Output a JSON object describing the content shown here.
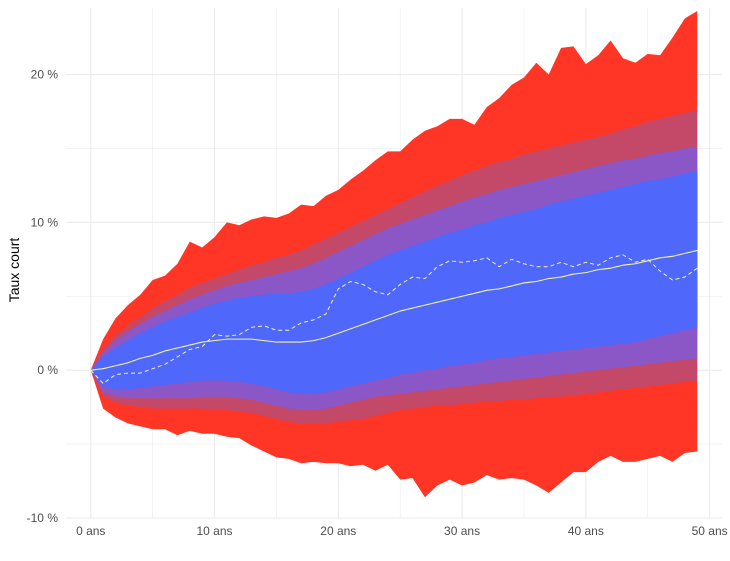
{
  "chart_data": {
    "type": "area",
    "title": "",
    "xlabel": "",
    "ylabel": "Taux court",
    "x_unit_suffix": " ans",
    "y_unit_suffix": " %",
    "xlim": [
      -2,
      51
    ],
    "ylim": [
      -10,
      24.5
    ],
    "x_ticks": [
      0,
      10,
      20,
      30,
      40,
      50
    ],
    "x_tick_labels": [
      "0 ans",
      "10 ans",
      "20 ans",
      "30 ans",
      "40 ans",
      "50 ans"
    ],
    "y_ticks": [
      -10,
      0,
      10,
      20
    ],
    "y_tick_labels": [
      "-10 %",
      "0 %",
      "10 %",
      "20 %"
    ],
    "grid": true,
    "legend": "none",
    "colors": {
      "outer_band": "#FF3526",
      "middle_band": "#C44868",
      "inner_band": "#8B56C5",
      "core_band": "#4F67FB",
      "mean_line": "#F5F59E",
      "path_line": "#F5F59E",
      "grid": "#EBEBEB"
    },
    "x": [
      0,
      1,
      2,
      3,
      4,
      5,
      6,
      7,
      8,
      9,
      10,
      11,
      12,
      13,
      14,
      15,
      16,
      17,
      18,
      19,
      20,
      21,
      22,
      23,
      24,
      25,
      26,
      27,
      28,
      29,
      30,
      31,
      32,
      33,
      34,
      35,
      36,
      37,
      38,
      39,
      40,
      41,
      42,
      43,
      44,
      45,
      46,
      47,
      48,
      49
    ],
    "bands": [
      {
        "level": "outer",
        "upper": [
          0,
          2.1,
          3.5,
          4.4,
          5.1,
          6.1,
          6.4,
          7.2,
          8.7,
          8.3,
          9.0,
          10.0,
          9.8,
          10.2,
          10.4,
          10.3,
          10.6,
          11.2,
          11.1,
          11.8,
          12.2,
          12.9,
          13.5,
          14.2,
          14.8,
          14.8,
          15.6,
          16.2,
          16.5,
          17.0,
          17.0,
          16.6,
          17.8,
          18.4,
          19.3,
          19.8,
          20.8,
          20.0,
          21.8,
          21.9,
          20.7,
          21.3,
          22.3,
          21.1,
          20.8,
          21.4,
          21.3,
          22.5,
          23.8,
          24.3
        ],
        "lower": [
          0,
          -2.6,
          -3.2,
          -3.6,
          -3.8,
          -4.0,
          -4.0,
          -4.4,
          -4.1,
          -4.3,
          -4.3,
          -4.5,
          -4.6,
          -5.1,
          -5.5,
          -5.9,
          -6.0,
          -6.3,
          -6.2,
          -6.3,
          -6.3,
          -6.5,
          -6.4,
          -6.8,
          -6.4,
          -7.4,
          -7.3,
          -8.6,
          -7.8,
          -7.4,
          -7.8,
          -7.6,
          -7.1,
          -7.4,
          -7.3,
          -7.4,
          -7.8,
          -8.3,
          -7.6,
          -6.9,
          -6.9,
          -6.2,
          -5.8,
          -6.2,
          -6.2,
          -6.0,
          -5.8,
          -6.2,
          -5.6,
          -5.5
        ]
      },
      {
        "level": "middle",
        "upper": [
          0,
          1.4,
          2.4,
          3.0,
          3.6,
          4.2,
          4.7,
          5.1,
          5.6,
          5.9,
          6.2,
          6.5,
          6.8,
          7.1,
          7.3,
          7.6,
          7.8,
          8.1,
          8.5,
          8.9,
          9.3,
          9.7,
          10.1,
          10.5,
          10.9,
          11.3,
          11.7,
          12.1,
          12.5,
          12.8,
          13.2,
          13.5,
          13.8,
          14.1,
          14.3,
          14.6,
          14.8,
          15.0,
          15.2,
          15.4,
          15.6,
          15.8,
          16.0,
          16.3,
          16.5,
          16.8,
          17.0,
          17.2,
          17.4,
          17.6
        ],
        "lower": [
          0,
          -1.8,
          -2.2,
          -2.4,
          -2.5,
          -2.6,
          -2.6,
          -2.6,
          -2.6,
          -2.6,
          -2.7,
          -2.7,
          -2.8,
          -2.9,
          -3.1,
          -3.3,
          -3.5,
          -3.6,
          -3.6,
          -3.6,
          -3.5,
          -3.4,
          -3.3,
          -3.1,
          -2.9,
          -2.7,
          -2.6,
          -2.5,
          -2.4,
          -2.4,
          -2.3,
          -2.2,
          -2.1,
          -2.1,
          -2.0,
          -2.0,
          -1.9,
          -1.8,
          -1.8,
          -1.7,
          -1.6,
          -1.5,
          -1.4,
          -1.3,
          -1.2,
          -1.1,
          -1.0,
          -0.9,
          -0.8,
          -0.7
        ]
      },
      {
        "level": "inner",
        "upper": [
          0,
          1.2,
          2.0,
          2.6,
          3.1,
          3.6,
          4.0,
          4.4,
          4.8,
          5.1,
          5.4,
          5.7,
          5.9,
          6.1,
          6.3,
          6.5,
          6.7,
          6.9,
          7.2,
          7.6,
          8.0,
          8.4,
          8.8,
          9.2,
          9.6,
          9.9,
          10.2,
          10.5,
          10.8,
          11.1,
          11.4,
          11.7,
          11.9,
          12.2,
          12.4,
          12.6,
          12.8,
          13.0,
          13.2,
          13.4,
          13.6,
          13.8,
          14.0,
          14.2,
          14.3,
          14.5,
          14.7,
          14.8,
          15.0,
          15.1
        ],
        "lower": [
          0,
          -1.5,
          -1.8,
          -1.9,
          -1.9,
          -1.9,
          -1.9,
          -1.9,
          -1.9,
          -1.8,
          -1.8,
          -1.8,
          -1.9,
          -2.0,
          -2.2,
          -2.4,
          -2.6,
          -2.7,
          -2.7,
          -2.6,
          -2.4,
          -2.2,
          -2.0,
          -1.8,
          -1.7,
          -1.6,
          -1.5,
          -1.4,
          -1.3,
          -1.2,
          -1.1,
          -1.0,
          -0.9,
          -0.8,
          -0.7,
          -0.6,
          -0.5,
          -0.4,
          -0.3,
          -0.2,
          -0.1,
          0.0,
          0.1,
          0.2,
          0.3,
          0.4,
          0.5,
          0.6,
          0.7,
          0.8
        ]
      },
      {
        "level": "core",
        "upper": [
          0,
          0.9,
          1.5,
          2.0,
          2.5,
          2.9,
          3.3,
          3.6,
          3.9,
          4.2,
          4.5,
          4.7,
          4.9,
          5.0,
          5.1,
          5.2,
          5.2,
          5.3,
          5.5,
          5.8,
          6.2,
          6.6,
          7.0,
          7.4,
          7.8,
          8.1,
          8.4,
          8.7,
          9.0,
          9.3,
          9.5,
          9.8,
          10.0,
          10.3,
          10.5,
          10.7,
          10.9,
          11.2,
          11.4,
          11.6,
          11.8,
          12.0,
          12.2,
          12.4,
          12.6,
          12.8,
          12.9,
          13.1,
          13.3,
          13.5
        ],
        "lower": [
          0,
          -1.1,
          -1.3,
          -1.3,
          -1.2,
          -1.1,
          -1.0,
          -0.9,
          -0.8,
          -0.7,
          -0.7,
          -0.7,
          -0.8,
          -0.9,
          -1.1,
          -1.3,
          -1.5,
          -1.6,
          -1.6,
          -1.5,
          -1.3,
          -1.1,
          -0.9,
          -0.7,
          -0.5,
          -0.3,
          -0.2,
          0.0,
          0.1,
          0.3,
          0.4,
          0.5,
          0.7,
          0.8,
          0.9,
          1.0,
          1.1,
          1.2,
          1.3,
          1.4,
          1.5,
          1.6,
          1.7,
          1.8,
          1.9,
          2.1,
          2.3,
          2.5,
          2.7,
          2.9
        ]
      }
    ],
    "mean_line": [
      0,
      0.1,
      0.3,
      0.5,
      0.8,
      1.0,
      1.3,
      1.5,
      1.7,
      1.9,
      2.0,
      2.1,
      2.1,
      2.1,
      2.0,
      1.9,
      1.9,
      1.9,
      2.0,
      2.2,
      2.5,
      2.8,
      3.1,
      3.4,
      3.7,
      4.0,
      4.2,
      4.4,
      4.6,
      4.8,
      5.0,
      5.2,
      5.4,
      5.5,
      5.7,
      5.9,
      6.0,
      6.2,
      6.3,
      6.5,
      6.6,
      6.8,
      6.9,
      7.1,
      7.2,
      7.4,
      7.6,
      7.7,
      7.9,
      8.1
    ],
    "path_line": [
      0,
      -0.9,
      -0.3,
      -0.2,
      -0.2,
      0.1,
      0.4,
      0.9,
      1.4,
      1.6,
      2.4,
      2.3,
      2.4,
      2.9,
      3.0,
      2.7,
      2.7,
      3.2,
      3.4,
      3.8,
      5.5,
      6.0,
      5.8,
      5.3,
      5.1,
      5.8,
      6.3,
      6.2,
      7.0,
      7.4,
      7.3,
      7.4,
      7.6,
      7.0,
      7.5,
      7.2,
      7.0,
      7.0,
      7.3,
      7.0,
      7.3,
      7.1,
      7.6,
      7.8,
      7.3,
      7.5,
      6.7,
      6.1,
      6.3,
      6.9
    ]
  }
}
